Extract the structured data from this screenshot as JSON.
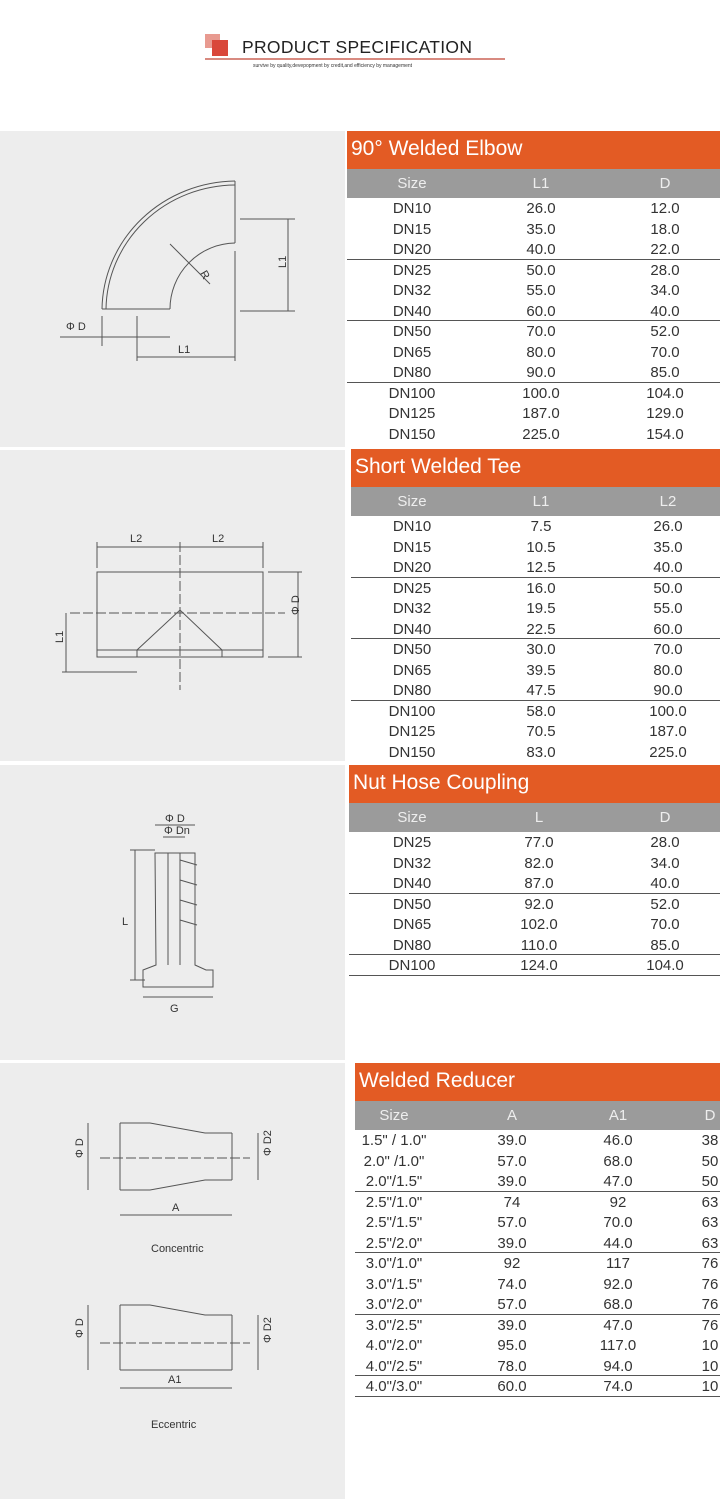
{
  "header": {
    "title": "PRODUCT  SPECIFICATION",
    "subtitle": "survive by quality,devepopment by credit,and efficiency by management",
    "colors": {
      "logo": "#d9473a",
      "rule": "#d88a80"
    }
  },
  "colors": {
    "title_bar": "#e35b24",
    "header_row": "#9b9b9b",
    "panel": "#ededed"
  },
  "sections": [
    {
      "title": "90° Welded Elbow",
      "columns": [
        "Size",
        "L1",
        "D"
      ],
      "groups": [
        3,
        6,
        9
      ],
      "rows": [
        [
          "DN10",
          "26.0",
          "12.0"
        ],
        [
          "DN15",
          "35.0",
          "18.0"
        ],
        [
          "DN20",
          "40.0",
          "22.0"
        ],
        [
          "DN25",
          "50.0",
          "28.0"
        ],
        [
          "DN32",
          "55.0",
          "34.0"
        ],
        [
          "DN40",
          "60.0",
          "40.0"
        ],
        [
          "DN50",
          "70.0",
          "52.0"
        ],
        [
          "DN65",
          "80.0",
          "70.0"
        ],
        [
          "DN80",
          "90.0",
          "85.0"
        ],
        [
          "DN100",
          "100.0",
          "104.0"
        ],
        [
          "DN125",
          "187.0",
          "129.0"
        ],
        [
          "DN150",
          "225.0",
          "154.0"
        ]
      ],
      "drawing_labels": {
        "phi_d": "Φ D",
        "r": "R",
        "l1_v": "L1",
        "l1_h": "L1"
      }
    },
    {
      "title": "Short Welded Tee",
      "columns": [
        "Size",
        "L1",
        "L2"
      ],
      "groups": [
        3,
        6,
        9
      ],
      "rows": [
        [
          "DN10",
          "7.5",
          "26.0"
        ],
        [
          "DN15",
          "10.5",
          "35.0"
        ],
        [
          "DN20",
          "12.5",
          "40.0"
        ],
        [
          "DN25",
          "16.0",
          "50.0"
        ],
        [
          "DN32",
          "19.5",
          "55.0"
        ],
        [
          "DN40",
          "22.5",
          "60.0"
        ],
        [
          "DN50",
          "30.0",
          "70.0"
        ],
        [
          "DN65",
          "39.5",
          "80.0"
        ],
        [
          "DN80",
          "47.5",
          "90.0"
        ],
        [
          "DN100",
          "58.0",
          "100.0"
        ],
        [
          "DN125",
          "70.5",
          "187.0"
        ],
        [
          "DN150",
          "83.0",
          "225.0"
        ]
      ],
      "drawing_labels": {
        "l2a": "L2",
        "l2b": "L2",
        "l1": "L1",
        "phi_d": "Φ D"
      }
    },
    {
      "title": "Nut Hose Coupling",
      "columns": [
        "Size",
        "L",
        "D"
      ],
      "groups": [
        3,
        6,
        7
      ],
      "rows": [
        [
          "DN25",
          "77.0",
          "28.0"
        ],
        [
          "DN32",
          "82.0",
          "34.0"
        ],
        [
          "DN40",
          "87.0",
          "40.0"
        ],
        [
          "DN50",
          "92.0",
          "52.0"
        ],
        [
          "DN65",
          "102.0",
          "70.0"
        ],
        [
          "DN80",
          "110.0",
          "85.0"
        ],
        [
          "DN100",
          "124.0",
          "104.0"
        ]
      ],
      "drawing_labels": {
        "phi_d": "Φ D",
        "phi_dn": "Φ Dn",
        "l": "L",
        "g": "G"
      }
    },
    {
      "title": "Welded Reducer",
      "columns": [
        "Size",
        "A",
        "A1",
        "D"
      ],
      "groups": [
        3,
        6,
        9,
        12,
        13
      ],
      "rows": [
        [
          "1.5\"  / 1.0\"",
          "39.0",
          "46.0",
          "38"
        ],
        [
          "2.0\" /1.0\"",
          "57.0",
          "68.0",
          "50"
        ],
        [
          "2.0\"/1.5\"",
          "39.0",
          "47.0",
          "50"
        ],
        [
          "2.5\"/1.0\"",
          "74",
          "92",
          "63"
        ],
        [
          "2.5\"/1.5\"",
          "57.0",
          "70.0",
          "63"
        ],
        [
          "2.5\"/2.0\"",
          "39.0",
          "44.0",
          "63"
        ],
        [
          "3.0\"/1.0\"",
          "92",
          "117",
          "76"
        ],
        [
          "3.0\"/1.5\"",
          "74.0",
          "92.0",
          "76"
        ],
        [
          "3.0\"/2.0\"",
          "57.0",
          "68.0",
          "76"
        ],
        [
          "3.0\"/2.5\"",
          "39.0",
          "47.0",
          "76"
        ],
        [
          "4.0\"/2.0\"",
          "95.0",
          "117.0",
          "10"
        ],
        [
          "4.0\"/2.5\"",
          "78.0",
          "94.0",
          "10"
        ],
        [
          "4.0\"/3.0\"",
          "60.0",
          "74.0",
          "10"
        ]
      ],
      "drawing_labels": {
        "phi_d1": "Φ D",
        "phi_d2a": "Φ D2",
        "a": "A",
        "concentric": "Concentric",
        "phi_d3": "Φ D",
        "phi_d2b": "Φ D2",
        "a1": "A1",
        "eccentric": "Eccentric"
      }
    }
  ]
}
